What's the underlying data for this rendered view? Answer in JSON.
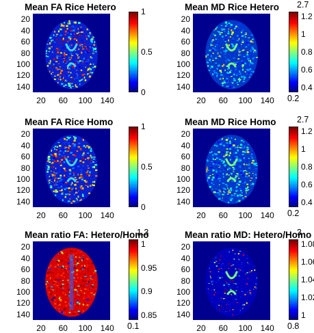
{
  "panels": [
    {
      "title": "Mean FA Rice Hetero",
      "cb_ticks": [
        "1",
        "0.5",
        "0"
      ],
      "cb_top": "",
      "cb_bottom": "",
      "style": "fa"
    },
    {
      "title": "Mean MD Rice Hetero",
      "cb_ticks": [
        "1.2",
        "1",
        "0.8",
        "0.6",
        "0.4"
      ],
      "cb_top": "2.7",
      "cb_bottom": "0.2",
      "style": "md"
    },
    {
      "title": "Mean FA Rice Homo",
      "cb_ticks": [
        "1",
        "0.5",
        "0"
      ],
      "cb_top": "",
      "cb_bottom": "",
      "style": "fa"
    },
    {
      "title": "Mean MD Rice Homo",
      "cb_ticks": [
        "1.2",
        "1",
        "0.8",
        "0.6",
        "0.4"
      ],
      "cb_top": "2.7",
      "cb_bottom": "0.2",
      "style": "md"
    },
    {
      "title": "Mean ratio FA: Hetero/Homo",
      "cb_ticks": [
        "1",
        "0.95",
        "0.9",
        "0.85"
      ],
      "cb_top": "1.3",
      "cb_bottom": "0.1",
      "style": "ratiofa"
    },
    {
      "title": "Mean ratio MD: Hetero/Homo",
      "cb_ticks": [
        "1.08",
        "1.06",
        "1.04",
        "1.02",
        "1"
      ],
      "cb_top": "3",
      "cb_bottom": "0.8",
      "style": "ratiomd"
    }
  ],
  "y_ticks": [
    "20",
    "40",
    "60",
    "80",
    "100",
    "120",
    "140"
  ],
  "x_ticks": [
    "20",
    "60",
    "100",
    "140"
  ],
  "colors": {
    "background": "#00008f",
    "colormap": "jet"
  }
}
